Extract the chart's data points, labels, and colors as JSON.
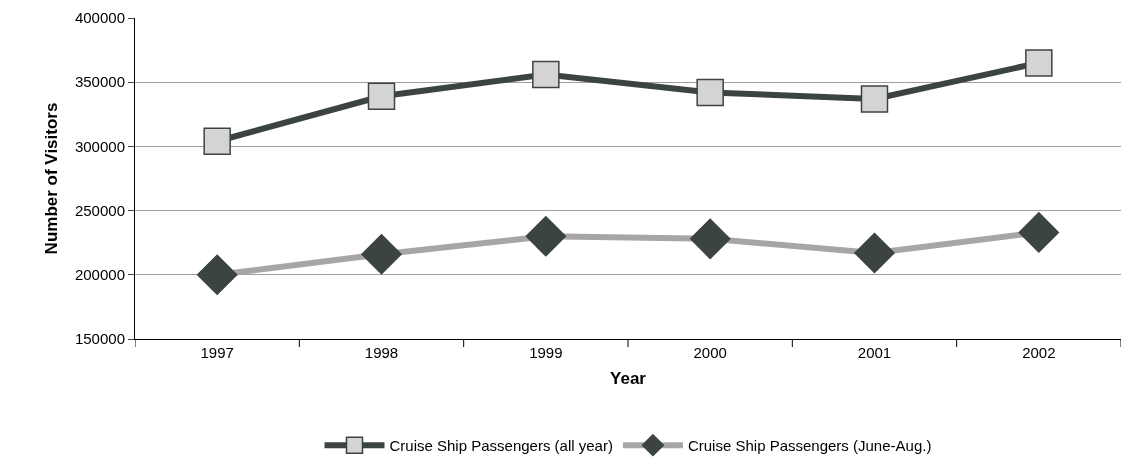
{
  "chart_data": {
    "type": "line",
    "xlabel": "Year",
    "ylabel": "Number of Visitors",
    "categories": [
      "1997",
      "1998",
      "1999",
      "2000",
      "2001",
      "2002"
    ],
    "series": [
      {
        "name": "Cruise Ship Passengers (all year)",
        "color": "#3c4441",
        "marker": "square",
        "values": [
          304000,
          339000,
          356000,
          342000,
          337000,
          365000
        ]
      },
      {
        "name": "Cruise Ship Passengers (June-Aug.)",
        "color": "#a6a6a6",
        "marker": "diamond",
        "values": [
          200000,
          216000,
          230000,
          228000,
          217000,
          233000
        ]
      }
    ],
    "ylim": [
      150000,
      400000
    ],
    "yticks": [
      150000,
      200000,
      250000,
      300000,
      350000,
      400000
    ],
    "grid": "y",
    "legend": "bottom"
  }
}
